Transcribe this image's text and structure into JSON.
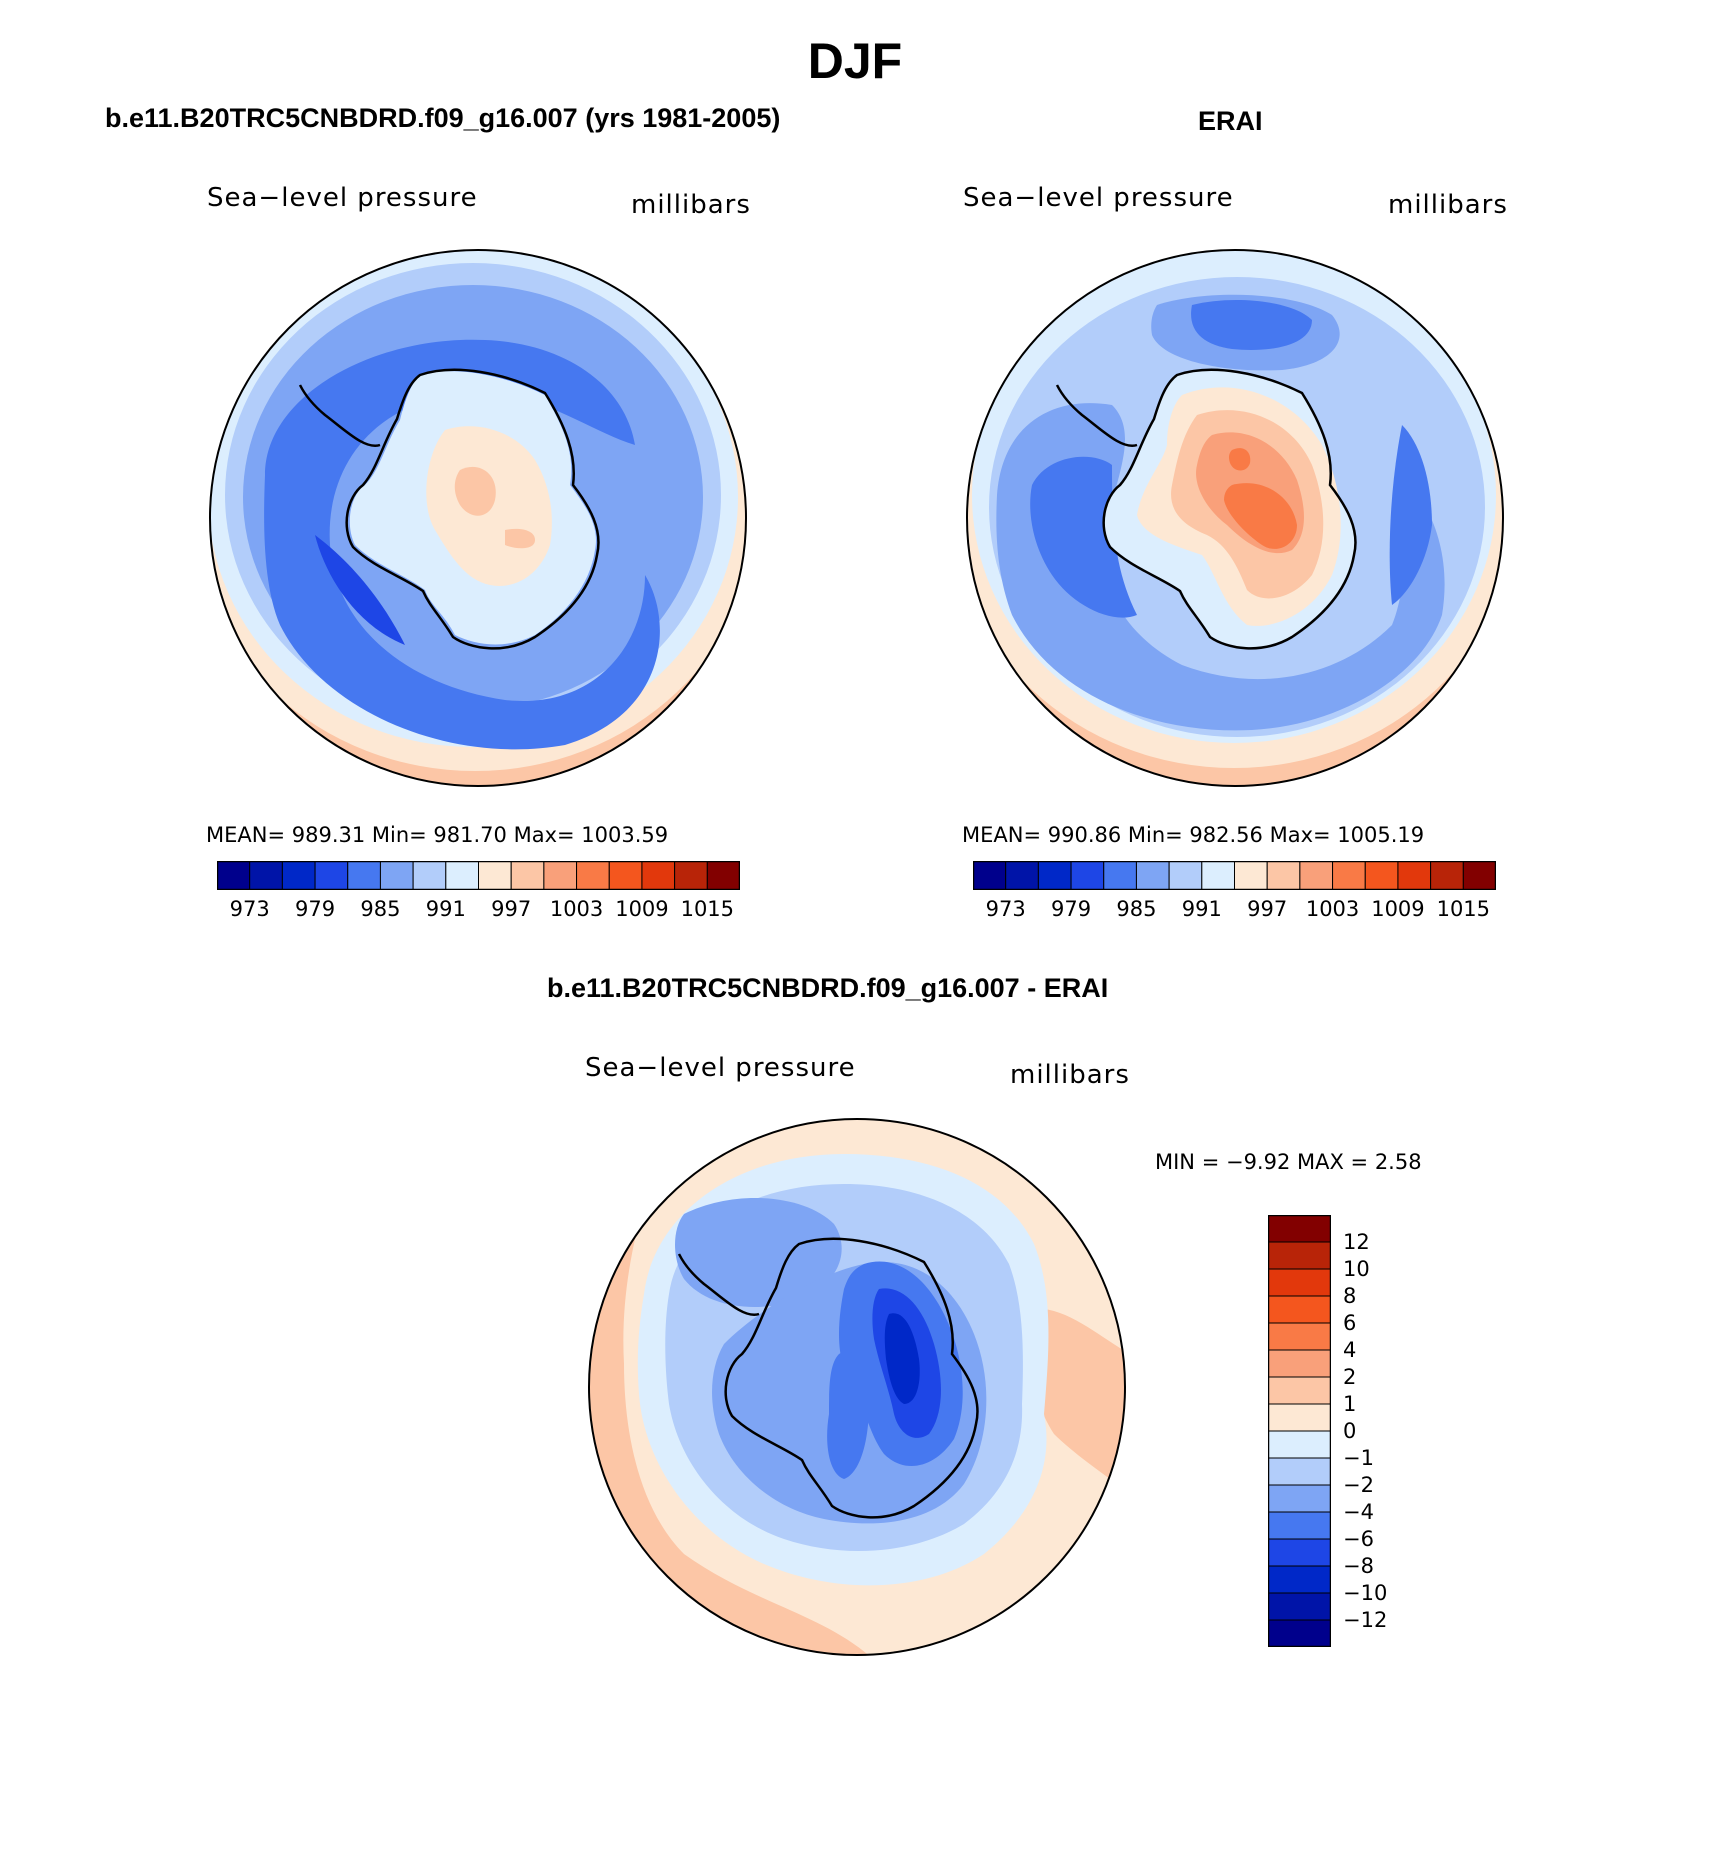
{
  "figure": {
    "title": "DJF"
  },
  "panels": [
    {
      "title": "b.e11.B20TRC5CNBDRD.f09_g16.007 (yrs 1981-2005)",
      "variable": "Sea−level pressure",
      "units": "millibars",
      "stats": "MEAN=  989.31    Min=  981.70    Max=  1003.59"
    },
    {
      "title": "ERAI",
      "variable": "Sea−level pressure",
      "units": "millibars",
      "stats": "MEAN=  990.86    Min=  982.56    Max=  1005.19"
    },
    {
      "title": "b.e11.B20TRC5CNBDRD.f09_g16.007 - ERAI",
      "variable": "Sea−level pressure",
      "units": "millibars",
      "stats": "MIN =    −9.92  MAX =     2.58"
    }
  ],
  "colorbar_main": {
    "labels": [
      "973",
      "979",
      "985",
      "991",
      "997",
      "1003",
      "1009",
      "1015"
    ],
    "colors": [
      "#00008c",
      "#0014a8",
      "#0028c8",
      "#1e46e6",
      "#4678f0",
      "#7ea5f4",
      "#b2cdfa",
      "#dceefe",
      "#fde8d4",
      "#fcc6a6",
      "#f9a07a",
      "#f97a46",
      "#f4561e",
      "#e2380c",
      "#b82408",
      "#820000"
    ]
  },
  "colorbar_diff": {
    "labels": [
      "12",
      "10",
      "8",
      "6",
      "4",
      "2",
      "1",
      "0",
      "−1",
      "−2",
      "−4",
      "−6",
      "−8",
      "−10",
      "−12"
    ],
    "colors_top_to_bottom": [
      "#820000",
      "#b82408",
      "#e2380c",
      "#f4561e",
      "#f97a46",
      "#f9a07a",
      "#fcc6a6",
      "#fde8d4",
      "#dceefe",
      "#b2cdfa",
      "#7ea5f4",
      "#4678f0",
      "#1e46e6",
      "#0028c8",
      "#0014a8",
      "#00008c"
    ]
  },
  "chart_data": [
    {
      "type": "heatmap",
      "title": "b.e11.B20TRC5CNBDRD.f09_g16.007 (yrs 1981-2005)",
      "projection": "south polar stereographic",
      "variable": "Sea-level pressure",
      "units": "millibars",
      "mean": 989.31,
      "min": 981.7,
      "max": 1003.59,
      "contour_levels": [
        973,
        976,
        979,
        982,
        985,
        988,
        991,
        994,
        997,
        1000,
        1003,
        1006,
        1009,
        1012,
        1015
      ]
    },
    {
      "type": "heatmap",
      "title": "ERAI",
      "projection": "south polar stereographic",
      "variable": "Sea-level pressure",
      "units": "millibars",
      "mean": 990.86,
      "min": 982.56,
      "max": 1005.19,
      "contour_levels": [
        973,
        976,
        979,
        982,
        985,
        988,
        991,
        994,
        997,
        1000,
        1003,
        1006,
        1009,
        1012,
        1015
      ]
    },
    {
      "type": "heatmap",
      "title": "b.e11.B20TRC5CNBDRD.f09_g16.007 - ERAI",
      "projection": "south polar stereographic",
      "variable": "Sea-level pressure",
      "units": "millibars",
      "min": -9.92,
      "max": 2.58,
      "contour_levels": [
        -12,
        -10,
        -8,
        -6,
        -4,
        -2,
        -1,
        0,
        1,
        2,
        4,
        6,
        8,
        10,
        12
      ]
    }
  ]
}
